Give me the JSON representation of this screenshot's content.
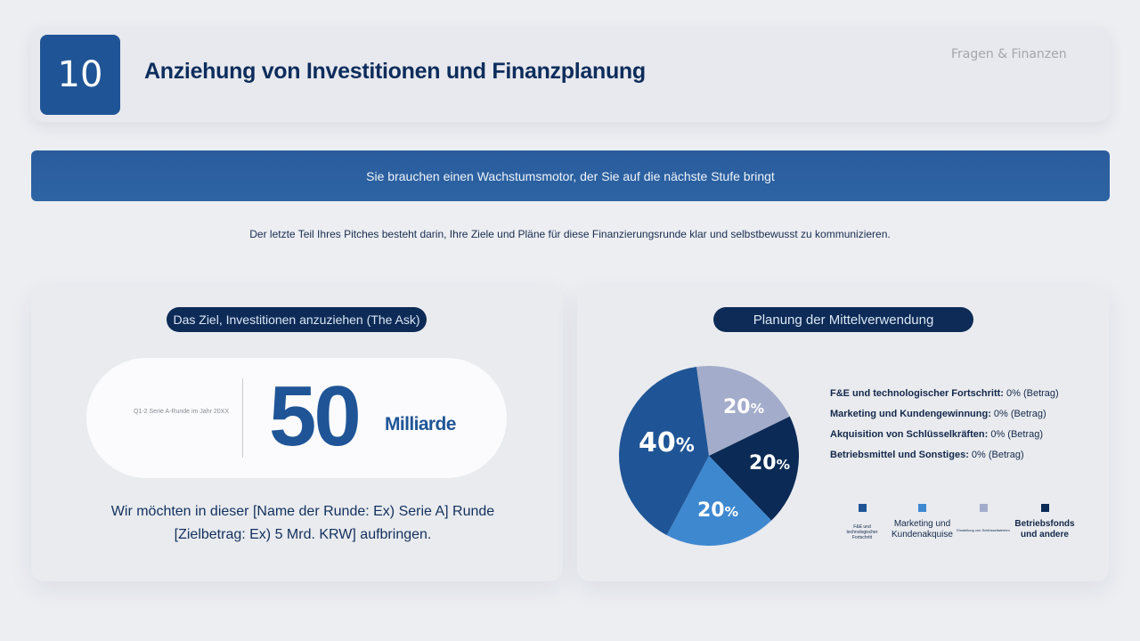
{
  "header": {
    "number": "10",
    "title": "Anziehung von Investitionen und Finanzplanung",
    "section_label": "Fragen & Finanzen"
  },
  "banner": {
    "text": "Sie brauchen einen Wachstumsmotor, der Sie auf die nächste Stufe bringt"
  },
  "subtitle": "Der letzte Teil Ihres Pitches besteht darin, Ihre Ziele und Pläne für diese Finanzierungsrunde klar und selbstbewusst zu kommunizieren.",
  "ask_panel": {
    "pill": "Das Ziel, Investitionen anzuziehen (The Ask)",
    "caption": "Q1-2 Serie A-Runde im Jahr 20XX",
    "amount": "50",
    "unit": "Milliarde",
    "text_line1": "Wir möchten in dieser [Name der Runde: Ex) Serie A] Runde",
    "text_line2": "[Zielbetrag: Ex) 5 Mrd. KRW] aufbringen."
  },
  "plan_panel": {
    "pill": "Planung der Mittelverwendung",
    "allocations": [
      {
        "label": "F&E und technologischer Fortschritt:",
        "value": " 0% (Betrag)"
      },
      {
        "label": "Marketing und Kundengewinnung:",
        "value": " 0% (Betrag)"
      },
      {
        "label": "Akquisition von Schlüsselkräften:",
        "value": " 0% (Betrag)"
      },
      {
        "label": "Betriebsmittel und Sonstiges:",
        "value": " 0% (Betrag)"
      }
    ],
    "legend": [
      {
        "label": "F&E und technologischer Fortschritt",
        "color": "#1f5596"
      },
      {
        "label": "Marketing und Kundenakquise",
        "color": "#3e88d0"
      },
      {
        "label": "Einstellung von Schlüsseltalenten",
        "color": "#a3acca"
      },
      {
        "label": "Betriebsfonds und andere",
        "color": "#0b2a55"
      }
    ]
  },
  "chart_data": {
    "type": "pie",
    "title": "Planung der Mittelverwendung",
    "categories": [
      "F&E und technologischer Fortschritt",
      "Marketing und Kundenakquise",
      "Einstellung von Schlüsseltalenten",
      "Betriebsfonds und andere"
    ],
    "values": [
      40,
      20,
      20,
      20
    ],
    "labels": [
      "40%",
      "20%",
      "20%",
      "20%"
    ],
    "colors": [
      "#1f5596",
      "#3e88d0",
      "#a3acca",
      "#0b2a55"
    ],
    "legend_position": "bottom-right"
  }
}
